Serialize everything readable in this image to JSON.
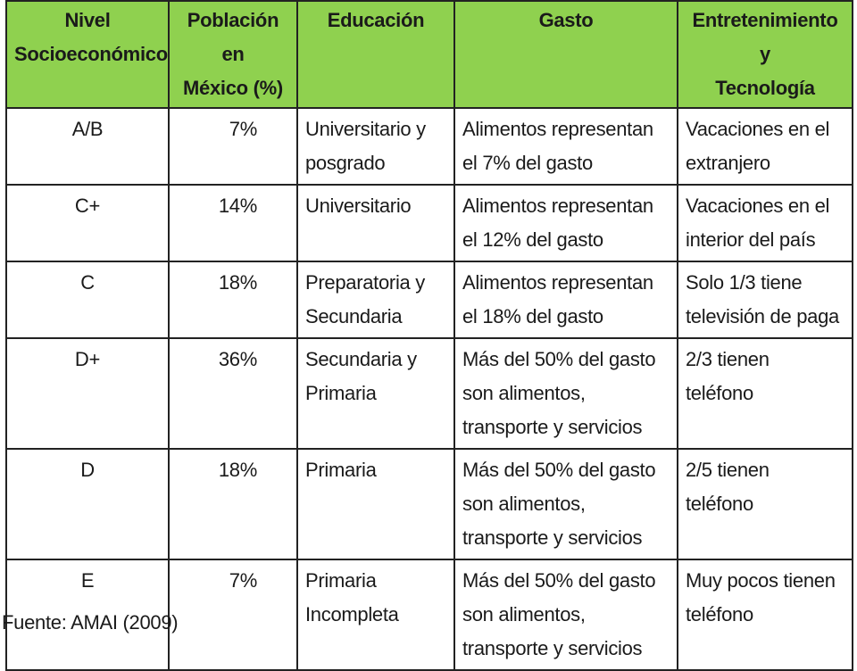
{
  "table": {
    "headers": [
      "Nivel\nSocioeconómico",
      "Población en\nMéxico (%)",
      "Educación",
      "Gasto",
      "Entretenimiento y\nTecnología"
    ],
    "rows": [
      {
        "nivel": "A/B",
        "poblacion": "7%",
        "educacion": "Universitario y\nposgrado",
        "gasto": "Alimentos representan\nel 7% del gasto",
        "entretenimiento": "Vacaciones en el\nextranjero"
      },
      {
        "nivel": "C+",
        "poblacion": "14%",
        "educacion": "Universitario",
        "gasto": "Alimentos representan\nel 12% del gasto",
        "entretenimiento": "Vacaciones en el\ninterior del país"
      },
      {
        "nivel": "C",
        "poblacion": "18%",
        "educacion": " Preparatoria y\nSecundaria",
        "gasto": "Alimentos representan\nel 18% del gasto",
        "entretenimiento": "Solo 1/3 tiene\ntelevisión de paga"
      },
      {
        "nivel": "D+",
        "poblacion": "36%",
        "educacion": "Secundaria y\nPrimaria",
        "gasto": "Más del 50% del gasto\nson alimentos,\ntransporte y servicios",
        "entretenimiento": "2/3 tienen\nteléfono"
      },
      {
        "nivel": "D",
        "poblacion": "18%",
        "educacion": "Primaria",
        "gasto": "Más del 50% del gasto\nson alimentos,\ntransporte y servicios",
        "entretenimiento": "2/5 tienen\nteléfono"
      },
      {
        "nivel": "E",
        "poblacion": "7%",
        "educacion": "Primaria\nIncompleta",
        "gasto": "Más del 50% del gasto\nson alimentos,\ntransporte y servicios",
        "entretenimiento": "Muy pocos tienen\nteléfono"
      }
    ]
  },
  "source": "Fuente: AMAI (2009)",
  "colors": {
    "header_bg": "#8fd14f",
    "border": "#222222",
    "text": "#1a1a1a"
  }
}
